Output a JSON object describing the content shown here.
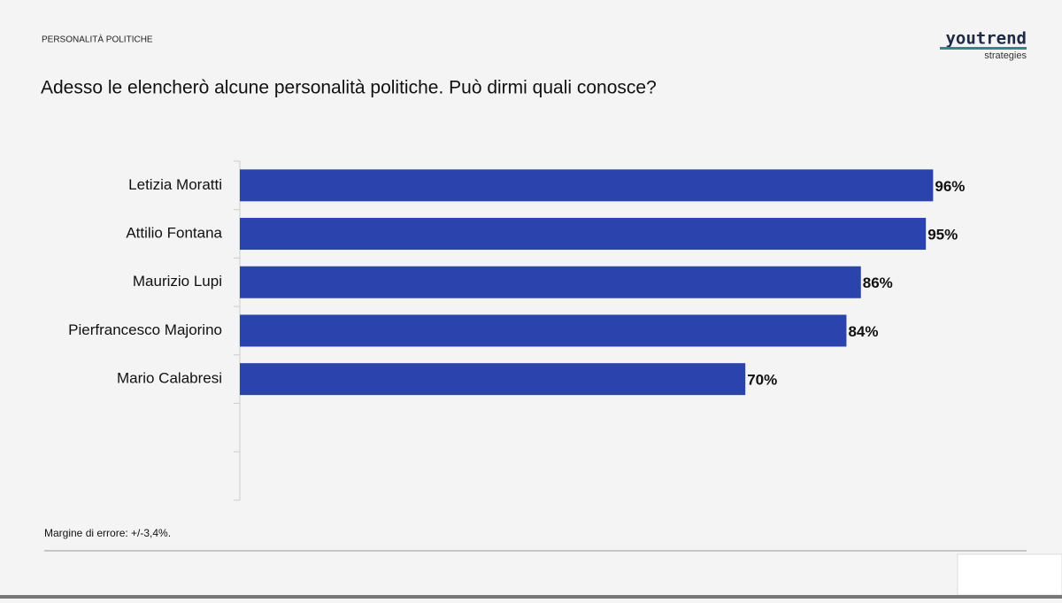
{
  "header": {
    "section": "PERSONALITÀ POLITICHE",
    "logo": "youtrend",
    "logo_sub": "strategies"
  },
  "chart_data": {
    "type": "bar",
    "orientation": "horizontal",
    "title": "Adesso le elencherò alcune personalità politiche. Può dirmi quali conosce?",
    "categories": [
      "Letizia Moratti",
      "Attilio Fontana",
      "Maurizio Lupi",
      "Pierfrancesco Majorino",
      "Mario Calabresi"
    ],
    "values": [
      96,
      95,
      86,
      84,
      70
    ],
    "value_labels": [
      "96%",
      "95%",
      "86%",
      "84%",
      "70%"
    ],
    "color": "#2b44ad",
    "xlim": [
      0,
      100
    ]
  },
  "footer": {
    "note": "Margine di errore: +/-3,4%."
  }
}
